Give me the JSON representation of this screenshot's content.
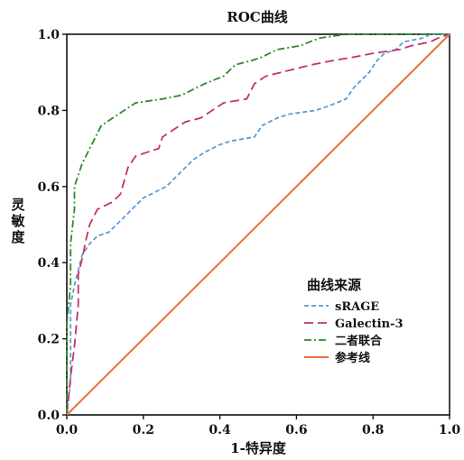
{
  "chart_data": {
    "type": "line",
    "title": "ROC曲线",
    "xlabel": "1-特异度",
    "ylabel": "灵敏度",
    "xlim": [
      0,
      1
    ],
    "ylim": [
      0,
      1
    ],
    "x_ticks": [
      "0.0",
      "0.2",
      "0.4",
      "0.6",
      "0.8",
      "1.0"
    ],
    "y_ticks": [
      "0.0",
      "0.2",
      "0.4",
      "0.6",
      "0.8",
      "1.0"
    ],
    "grid": false,
    "legend": {
      "title": "曲线来源",
      "position": "right"
    },
    "series": [
      {
        "name": "sRAGE",
        "color": "#5b9bd5",
        "dash": "dashed",
        "points": [
          [
            0,
            0
          ],
          [
            0.01,
            0.09
          ],
          [
            0.01,
            0.29
          ],
          [
            0.02,
            0.34
          ],
          [
            0.03,
            0.38
          ],
          [
            0.04,
            0.42
          ],
          [
            0.06,
            0.45
          ],
          [
            0.08,
            0.47
          ],
          [
            0.11,
            0.48
          ],
          [
            0.13,
            0.5
          ],
          [
            0.15,
            0.52
          ],
          [
            0.18,
            0.55
          ],
          [
            0.2,
            0.57
          ],
          [
            0.24,
            0.59
          ],
          [
            0.26,
            0.6
          ],
          [
            0.28,
            0.62
          ],
          [
            0.31,
            0.65
          ],
          [
            0.33,
            0.67
          ],
          [
            0.36,
            0.69
          ],
          [
            0.4,
            0.71
          ],
          [
            0.43,
            0.72
          ],
          [
            0.49,
            0.73
          ],
          [
            0.51,
            0.76
          ],
          [
            0.55,
            0.78
          ],
          [
            0.58,
            0.79
          ],
          [
            0.65,
            0.8
          ],
          [
            0.68,
            0.81
          ],
          [
            0.73,
            0.83
          ],
          [
            0.75,
            0.86
          ],
          [
            0.77,
            0.88
          ],
          [
            0.79,
            0.9
          ],
          [
            0.81,
            0.93
          ],
          [
            0.83,
            0.95
          ],
          [
            0.86,
            0.96
          ],
          [
            0.88,
            0.98
          ],
          [
            0.93,
            0.99
          ],
          [
            0.95,
            1.0
          ],
          [
            1.0,
            1.0
          ]
        ]
      },
      {
        "name": "Galectin-3",
        "color": "#c8306a",
        "dash": "longdash",
        "points": [
          [
            0,
            0
          ],
          [
            0.01,
            0.1
          ],
          [
            0.02,
            0.18
          ],
          [
            0.03,
            0.29
          ],
          [
            0.03,
            0.37
          ],
          [
            0.04,
            0.41
          ],
          [
            0.05,
            0.46
          ],
          [
            0.06,
            0.5
          ],
          [
            0.08,
            0.54
          ],
          [
            0.1,
            0.55
          ],
          [
            0.12,
            0.56
          ],
          [
            0.14,
            0.58
          ],
          [
            0.16,
            0.65
          ],
          [
            0.18,
            0.68
          ],
          [
            0.21,
            0.69
          ],
          [
            0.24,
            0.7
          ],
          [
            0.25,
            0.73
          ],
          [
            0.28,
            0.75
          ],
          [
            0.31,
            0.77
          ],
          [
            0.35,
            0.78
          ],
          [
            0.38,
            0.8
          ],
          [
            0.41,
            0.82
          ],
          [
            0.47,
            0.83
          ],
          [
            0.49,
            0.87
          ],
          [
            0.52,
            0.89
          ],
          [
            0.56,
            0.9
          ],
          [
            0.6,
            0.91
          ],
          [
            0.64,
            0.92
          ],
          [
            0.69,
            0.93
          ],
          [
            0.75,
            0.94
          ],
          [
            0.8,
            0.95
          ],
          [
            0.87,
            0.96
          ],
          [
            0.9,
            0.97
          ],
          [
            0.95,
            0.98
          ],
          [
            0.97,
            0.99
          ],
          [
            1.0,
            1.0
          ]
        ]
      },
      {
        "name": "二者联合",
        "color": "#2f8a2f",
        "dash": "dashdot",
        "points": [
          [
            0,
            0
          ],
          [
            0.0,
            0.24
          ],
          [
            0.01,
            0.34
          ],
          [
            0.01,
            0.45
          ],
          [
            0.02,
            0.54
          ],
          [
            0.02,
            0.6
          ],
          [
            0.03,
            0.63
          ],
          [
            0.04,
            0.66
          ],
          [
            0.05,
            0.68
          ],
          [
            0.06,
            0.7
          ],
          [
            0.07,
            0.72
          ],
          [
            0.08,
            0.74
          ],
          [
            0.09,
            0.76
          ],
          [
            0.12,
            0.78
          ],
          [
            0.15,
            0.8
          ],
          [
            0.18,
            0.82
          ],
          [
            0.25,
            0.83
          ],
          [
            0.3,
            0.84
          ],
          [
            0.32,
            0.85
          ],
          [
            0.36,
            0.87
          ],
          [
            0.41,
            0.89
          ],
          [
            0.44,
            0.92
          ],
          [
            0.48,
            0.93
          ],
          [
            0.51,
            0.94
          ],
          [
            0.55,
            0.96
          ],
          [
            0.61,
            0.97
          ],
          [
            0.66,
            0.99
          ],
          [
            0.73,
            1.0
          ],
          [
            1.0,
            1.0
          ]
        ]
      },
      {
        "name": "参考线",
        "color": "#e8703a",
        "dash": "solid",
        "points": [
          [
            0,
            0
          ],
          [
            1,
            1
          ]
        ]
      }
    ]
  }
}
